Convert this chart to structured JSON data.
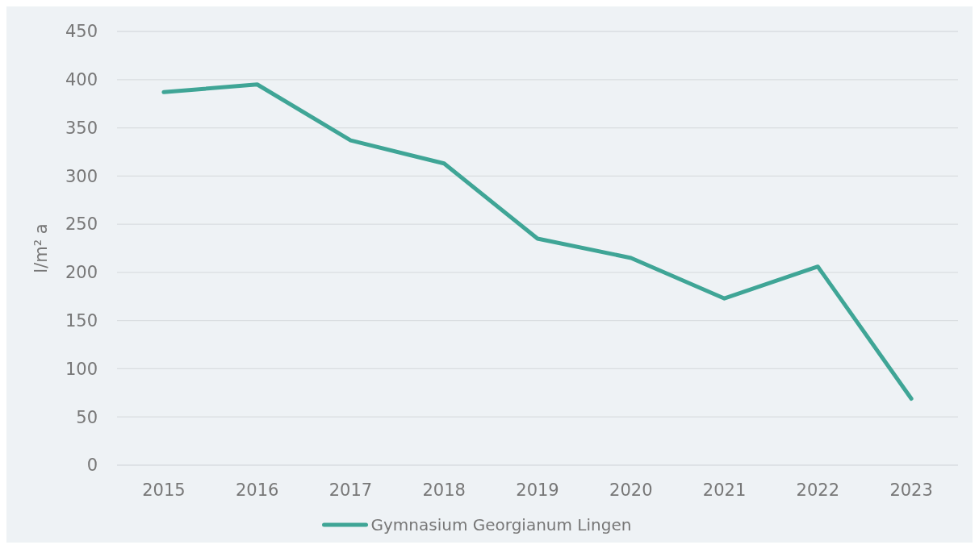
{
  "chart_data": {
    "type": "line",
    "ylabel": "l/m² a",
    "categories": [
      "2015",
      "2016",
      "2017",
      "2018",
      "2019",
      "2020",
      "2021",
      "2022",
      "2023"
    ],
    "series": [
      {
        "name": "Gymnasium Georgianum Lingen",
        "color": "#3fa596",
        "values": [
          387,
          395,
          337,
          313,
          235,
          215,
          173,
          206,
          69
        ]
      }
    ],
    "ylim": [
      0,
      450
    ],
    "yticks": [
      0,
      50,
      100,
      150,
      200,
      250,
      300,
      350,
      400,
      450
    ],
    "grid": "y",
    "legend": "bottom",
    "marker": "none",
    "line_style": "solid"
  }
}
